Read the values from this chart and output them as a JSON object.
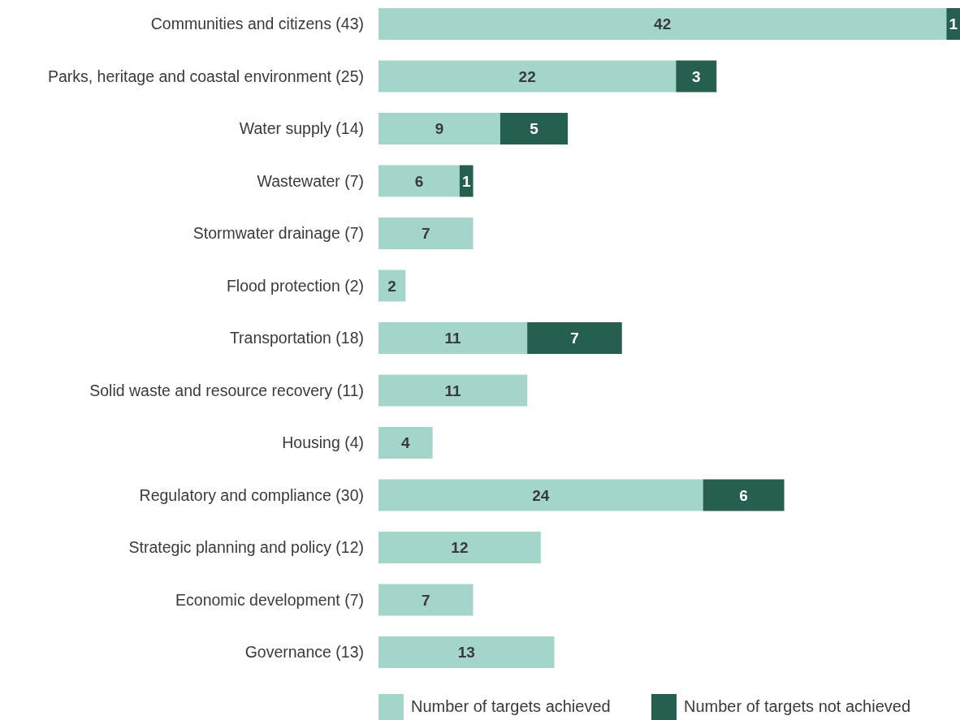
{
  "chart_data": {
    "type": "bar",
    "orientation": "horizontal",
    "stacked": true,
    "data_labels": true,
    "legend": "bottom",
    "categories": [
      "Communities and citizens (43)",
      "Parks, heritage and coastal environment (25)",
      "Water supply (14)",
      "Wastewater (7)",
      "Stormwater drainage (7)",
      "Flood protection (2)",
      "Transportation (18)",
      "Solid waste and resource recovery (11)",
      "Housing (4)",
      "Regulatory and compliance (30)",
      "Strategic planning and policy (12)",
      "Economic development (7)",
      "Governance (13)"
    ],
    "series": [
      {
        "name": "Number of targets achieved",
        "color": "#a3d5cb",
        "values": [
          42,
          22,
          9,
          6,
          7,
          2,
          11,
          11,
          4,
          24,
          12,
          7,
          13
        ]
      },
      {
        "name": "Number of targets not achieved",
        "color": "#265e4f",
        "values": [
          1,
          3,
          5,
          1,
          null,
          null,
          7,
          null,
          null,
          6,
          null,
          null,
          null
        ]
      }
    ]
  }
}
